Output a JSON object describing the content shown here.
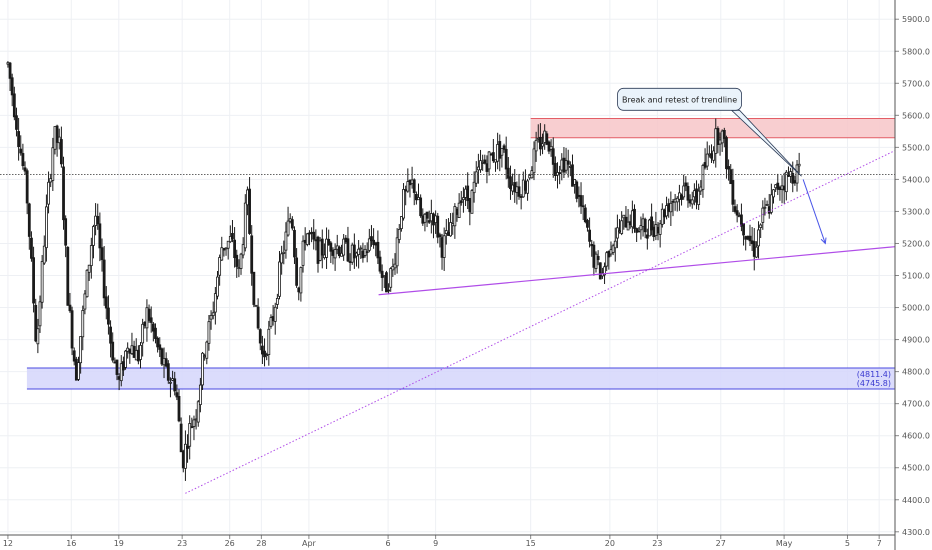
{
  "chart_data": {
    "type": "candlestick",
    "colors": {
      "candle": "#1a1a1a",
      "resistance_zone": "#f7c5c8",
      "resistance_line": "#e35d66",
      "support_zone": "#d5d6fb",
      "support_line": "#4848e0",
      "trendline": "#b04de8",
      "arrow": "#4a56e8",
      "grid": "#eef0f4"
    },
    "y_axis": {
      "ylim": [
        4290,
        5960
      ],
      "ticks": [
        "4300.0",
        "4400.0",
        "4500.0",
        "4600.0",
        "4700.0",
        "4800.0",
        "4900.0",
        "5000.0",
        "5100.0",
        "5200.0",
        "5300.0",
        "5400.0",
        "5500.0",
        "5600.0",
        "5700.0",
        "5800.0",
        "5900.0"
      ]
    },
    "x_axis": {
      "ticks": [
        {
          "label": "12",
          "t": 0
        },
        {
          "label": "16",
          "t": 4
        },
        {
          "label": "19",
          "t": 7
        },
        {
          "label": "23",
          "t": 11
        },
        {
          "label": "26",
          "t": 14
        },
        {
          "label": "28",
          "t": 16
        },
        {
          "label": "Apr",
          "t": 19
        },
        {
          "label": "6",
          "t": 24
        },
        {
          "label": "9",
          "t": 27
        },
        {
          "label": "15",
          "t": 33
        },
        {
          "label": "20",
          "t": 38
        },
        {
          "label": "23",
          "t": 41
        },
        {
          "label": "27",
          "t": 45
        },
        {
          "label": "May",
          "t": 49
        },
        {
          "label": "5",
          "t": 53
        },
        {
          "label": "7",
          "t": 55
        }
      ],
      "xlim": [
        -0.5,
        56
      ]
    },
    "ohlc_anchors": [
      [
        0.0,
        5760
      ],
      [
        0.6,
        5560
      ],
      [
        1.2,
        5350
      ],
      [
        1.8,
        4880
      ],
      [
        2.4,
        5280
      ],
      [
        2.9,
        5540
      ],
      [
        3.3,
        5500
      ],
      [
        3.8,
        5020
      ],
      [
        4.3,
        4790
      ],
      [
        4.9,
        5050
      ],
      [
        5.5,
        5300
      ],
      [
        6.0,
        5090
      ],
      [
        6.5,
        4890
      ],
      [
        7.0,
        4760
      ],
      [
        7.6,
        4900
      ],
      [
        8.2,
        4840
      ],
      [
        8.8,
        4990
      ],
      [
        9.4,
        4880
      ],
      [
        10.0,
        4790
      ],
      [
        10.6,
        4760
      ],
      [
        11.0,
        4510
      ],
      [
        11.4,
        4610
      ],
      [
        11.9,
        4680
      ],
      [
        12.4,
        4870
      ],
      [
        12.9,
        4980
      ],
      [
        13.5,
        5190
      ],
      [
        14.1,
        5210
      ],
      [
        14.6,
        5100
      ],
      [
        15.1,
        5350
      ],
      [
        15.6,
        4990
      ],
      [
        16.1,
        4840
      ],
      [
        16.7,
        4960
      ],
      [
        17.3,
        5160
      ],
      [
        17.9,
        5300
      ],
      [
        18.3,
        5050
      ],
      [
        18.8,
        5240
      ],
      [
        19.6,
        5170
      ],
      [
        20.4,
        5200
      ],
      [
        21.3,
        5180
      ],
      [
        22.2,
        5150
      ],
      [
        23.1,
        5220
      ],
      [
        23.8,
        5060
      ],
      [
        24.3,
        5120
      ],
      [
        24.9,
        5330
      ],
      [
        25.6,
        5390
      ],
      [
        26.2,
        5250
      ],
      [
        26.8,
        5300
      ],
      [
        27.4,
        5190
      ],
      [
        28.0,
        5240
      ],
      [
        28.6,
        5360
      ],
      [
        29.2,
        5330
      ],
      [
        29.8,
        5440
      ],
      [
        30.5,
        5470
      ],
      [
        31.2,
        5500
      ],
      [
        31.7,
        5400
      ],
      [
        32.2,
        5370
      ],
      [
        32.7,
        5390
      ],
      [
        33.4,
        5500
      ],
      [
        34.0,
        5540
      ],
      [
        34.6,
        5440
      ],
      [
        35.2,
        5460
      ],
      [
        35.8,
        5380
      ],
      [
        36.3,
        5290
      ],
      [
        36.9,
        5160
      ],
      [
        37.5,
        5100
      ],
      [
        38.0,
        5200
      ],
      [
        38.6,
        5240
      ],
      [
        39.2,
        5290
      ],
      [
        39.8,
        5240
      ],
      [
        40.4,
        5250
      ],
      [
        41.0,
        5260
      ],
      [
        41.6,
        5320
      ],
      [
        42.2,
        5350
      ],
      [
        42.8,
        5370
      ],
      [
        43.4,
        5330
      ],
      [
        44.0,
        5440
      ],
      [
        44.6,
        5520
      ],
      [
        45.0,
        5560
      ],
      [
        45.4,
        5450
      ],
      [
        45.9,
        5320
      ],
      [
        46.5,
        5250
      ],
      [
        47.1,
        5180
      ],
      [
        47.6,
        5280
      ],
      [
        48.1,
        5320
      ],
      [
        48.6,
        5380
      ],
      [
        49.1,
        5400
      ],
      [
        49.6,
        5420
      ],
      [
        50.0,
        5430
      ]
    ],
    "zones": [
      {
        "name": "resistance",
        "y0": 5530,
        "y1": 5590,
        "t0": 33,
        "t1": 56
      },
      {
        "name": "support",
        "y0": 4745.8,
        "y1": 4811.4,
        "t0": 1.2,
        "t1": 56
      }
    ],
    "zone_labels": [
      "(4811.4)",
      "(4745.8)"
    ],
    "current_price": 5415,
    "trendlines": [
      {
        "name": "ascending-dotted",
        "t0": 11.2,
        "y0": 4420,
        "t1": 56,
        "y1": 5490,
        "style": "dotted"
      },
      {
        "name": "horizontal-support",
        "t0": 23.4,
        "y0": 5040,
        "t1": 56,
        "y1": 5190,
        "style": "solid"
      }
    ],
    "arrow": {
      "t0": 50.2,
      "y0": 5400,
      "t1": 51.6,
      "y1": 5200
    },
    "annotation": {
      "text": "Break and retest of trendline",
      "t": 42.4,
      "y": 5650
    }
  }
}
